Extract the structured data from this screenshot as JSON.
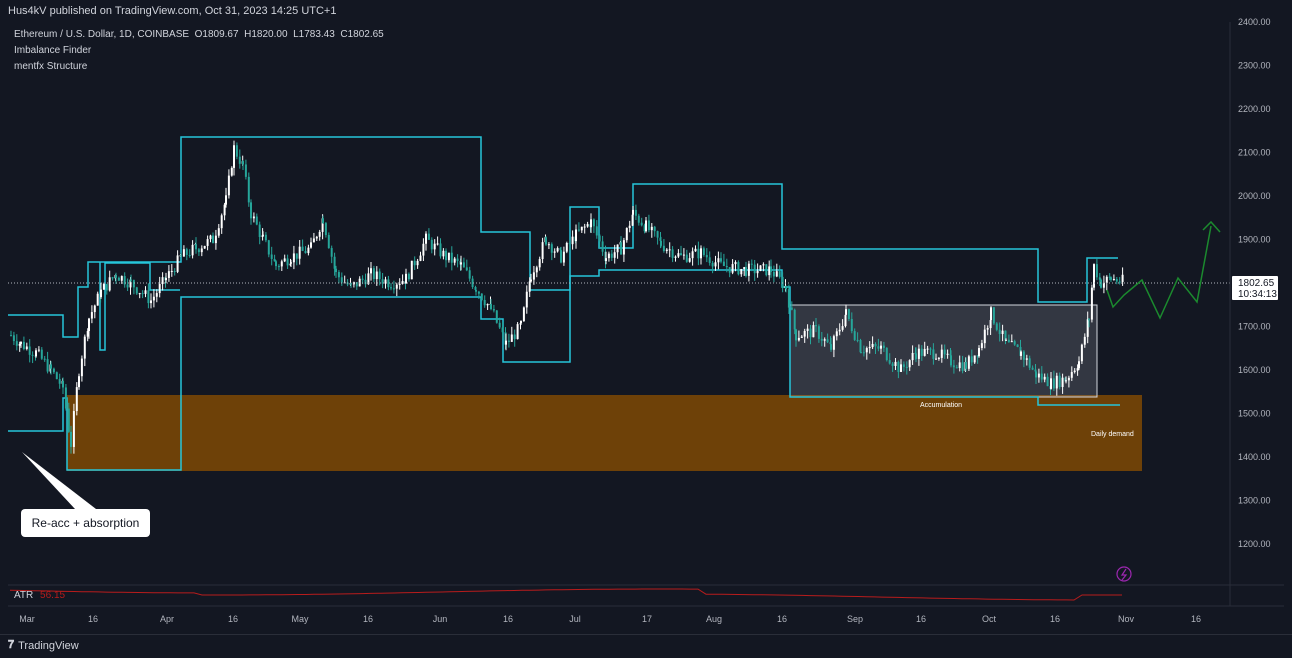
{
  "header": {
    "published_by": "Hus4kV published on TradingView.com, Oct 31, 2023 14:25 UTC+1"
  },
  "legend": {
    "symbol": "Ethereum / U.S. Dollar, 1D, COINBASE",
    "open_label": "O",
    "open": "1809.67",
    "high_label": "H",
    "high": "1820.00",
    "low_label": "L",
    "low": "1783.43",
    "close_label": "C",
    "close": "1802.65",
    "indicators": [
      "Imbalance Finder",
      "mentfx Structure"
    ]
  },
  "price_tag": {
    "price": "1802.65",
    "countdown": "10:34:13"
  },
  "callout": {
    "text": "Re-acc + absorption"
  },
  "atr": {
    "label": "ATR",
    "value": "56.15"
  },
  "footer": {
    "brand": "TradingView"
  },
  "chart_data": {
    "type": "candlestick",
    "y_ticks": [
      "2400.00",
      "2300.00",
      "2200.00",
      "2100.00",
      "2000.00",
      "1900.00",
      "1800.00",
      "1700.00",
      "1600.00",
      "1500.00",
      "1400.00",
      "1300.00",
      "1200.00"
    ],
    "x_ticks": [
      "Mar",
      "16",
      "Apr",
      "16",
      "May",
      "16",
      "Jun",
      "16",
      "Jul",
      "17",
      "Aug",
      "16",
      "Sep",
      "16",
      "Oct",
      "16",
      "Nov",
      "16"
    ],
    "ylim": [
      1150,
      2420
    ],
    "annotations": {
      "accumulation": "Accumulation",
      "daily_demand": "Daily demand",
      "demand_zone": [
        1370,
        1545
      ],
      "accumulation_range": [
        1545,
        1750
      ]
    },
    "colors": {
      "structure": "#26c6da",
      "demand_zone": "#6e4108",
      "up": "#ffffff",
      "down": "#26a69a",
      "projection": "#1b8a2e",
      "atr": "#b71c1c"
    }
  }
}
